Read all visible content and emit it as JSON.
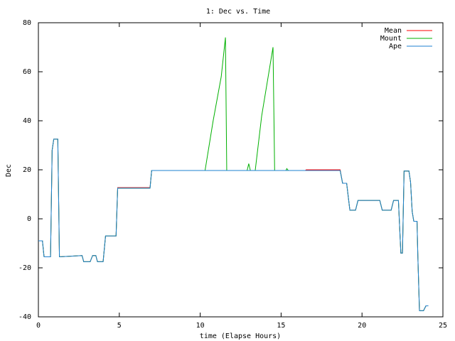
{
  "chart_data": {
    "type": "line",
    "title": "1: Dec vs. Time",
    "x_label": "time (Elapse Hours)",
    "y_label": "Dec",
    "xlim": [
      0,
      25
    ],
    "xticks": [
      0,
      5,
      10,
      15,
      20,
      25
    ],
    "ylim": [
      -40,
      80
    ],
    "yticks": [
      -40,
      -20,
      0,
      20,
      40,
      60,
      80
    ],
    "grid": false,
    "legend_position": "upper right",
    "series": [
      {
        "name": "Mean",
        "color": "#ff0000",
        "x": [
          0,
          0.25,
          0.35,
          0.75,
          0.85,
          0.95,
          1.2,
          1.3,
          2.7,
          2.8,
          3.2,
          3.35,
          3.55,
          3.65,
          4.0,
          4.15,
          4.8,
          4.9,
          6.9,
          7.0,
          16.5,
          16.55,
          18.65,
          18.8,
          19.05,
          19.25,
          19.6,
          19.75,
          21.1,
          21.25,
          21.8,
          21.95,
          22.25,
          22.4,
          22.5,
          22.6,
          22.9,
          23.0,
          23.1,
          23.2,
          23.4,
          23.45,
          23.55,
          23.8,
          23.95,
          24.1
        ],
        "values": [
          -9,
          -9,
          -15.5,
          -15.5,
          28,
          32.5,
          32.5,
          -15.5,
          -15,
          -17.5,
          -17.5,
          -15,
          -15,
          -17.5,
          -17.5,
          -7,
          -7,
          12.7,
          12.7,
          19.7,
          19.7,
          20,
          20,
          14.5,
          14.5,
          3.5,
          3.5,
          7.5,
          7.5,
          3.5,
          3.5,
          7.5,
          7.5,
          -14,
          -14,
          19.5,
          19.5,
          15,
          3,
          -1,
          -1,
          -15,
          -37.5,
          -37.5,
          -35.5,
          -35.5
        ]
      },
      {
        "name": "Mount",
        "color": "#00b000",
        "x": [
          0,
          0.25,
          0.35,
          0.75,
          0.85,
          0.95,
          1.2,
          1.3,
          2.7,
          2.8,
          3.2,
          3.35,
          3.55,
          3.65,
          4.0,
          4.15,
          4.8,
          4.9,
          6.9,
          7.0,
          10.3,
          10.8,
          11.3,
          11.56,
          11.64,
          12.9,
          13.0,
          13.1,
          13.4,
          13.8,
          14.2,
          14.5,
          14.6,
          15.3,
          15.35,
          15.45,
          18.65,
          18.8,
          19.05,
          19.25,
          19.6,
          19.75,
          21.1,
          21.25,
          21.8,
          21.95,
          22.25,
          22.4,
          22.5,
          22.6,
          22.9,
          23.0,
          23.1,
          23.2,
          23.4,
          23.45,
          23.55,
          23.8,
          23.95,
          24.1
        ],
        "values": [
          -9,
          -9,
          -15.5,
          -15.5,
          28,
          32.5,
          32.5,
          -15.5,
          -15,
          -17.5,
          -17.5,
          -15,
          -15,
          -17.5,
          -17.5,
          -7,
          -7,
          12.5,
          12.5,
          19.7,
          19.7,
          40,
          58,
          74,
          19.7,
          19.7,
          22.5,
          19.7,
          19.7,
          42,
          58,
          70,
          19.7,
          19.7,
          20.5,
          19.7,
          19.7,
          14.5,
          14.5,
          3.5,
          3.5,
          7.5,
          7.5,
          3.5,
          3.5,
          7.5,
          7.5,
          -14,
          -14,
          19.5,
          19.5,
          15,
          3,
          -1,
          -1,
          -15,
          -37.5,
          -37.5,
          -35.5,
          -35.5
        ]
      },
      {
        "name": "Ape",
        "color": "#1e80d0",
        "x": [
          0,
          0.25,
          0.35,
          0.75,
          0.85,
          0.95,
          1.2,
          1.3,
          2.7,
          2.8,
          3.2,
          3.35,
          3.55,
          3.65,
          4.0,
          4.15,
          4.8,
          4.9,
          6.9,
          7.0,
          18.65,
          18.8,
          19.05,
          19.25,
          19.6,
          19.75,
          21.1,
          21.25,
          21.8,
          21.95,
          22.25,
          22.4,
          22.5,
          22.6,
          22.9,
          23.0,
          23.1,
          23.2,
          23.4,
          23.45,
          23.55,
          23.8,
          23.95,
          24.1
        ],
        "values": [
          -9,
          -9,
          -15.5,
          -15.5,
          28,
          32.5,
          32.5,
          -15.5,
          -15,
          -17.5,
          -17.5,
          -15,
          -15,
          -17.5,
          -17.5,
          -7,
          -7,
          12.5,
          12.5,
          19.7,
          19.7,
          14.5,
          14.5,
          3.5,
          3.5,
          7.5,
          7.5,
          3.5,
          3.5,
          7.5,
          7.5,
          -14,
          -14,
          19.5,
          19.5,
          15,
          3,
          -1,
          -1,
          -15,
          -37.5,
          -37.5,
          -35.5,
          -35.5
        ]
      }
    ]
  }
}
